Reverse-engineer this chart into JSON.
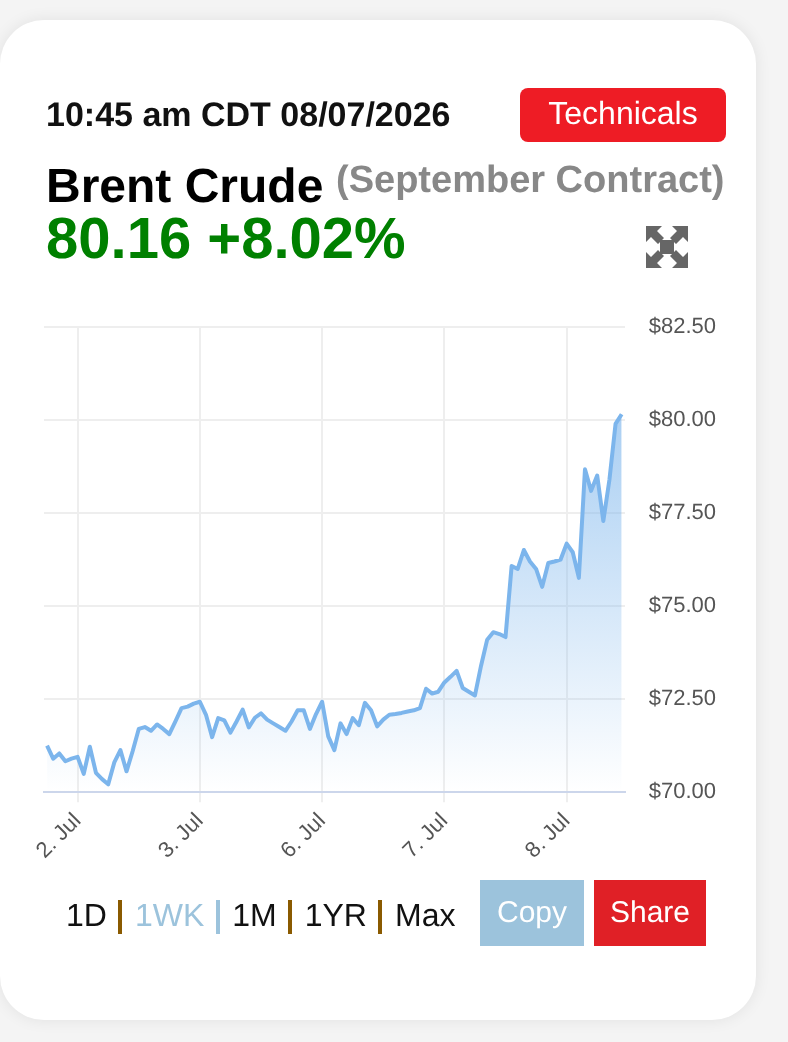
{
  "chart_data": {
    "type": "area",
    "title": "Brent Crude",
    "subtitle": "(September Contract)",
    "annotations": [
      "10:45 am CDT 08/07/2026",
      "80.16 +8.02%",
      "Technicals",
      "1D",
      "1WK",
      "1M",
      "1YR",
      "Max",
      "Copy",
      "Share"
    ],
    "categories": [
      null,
      null,
      null,
      null,
      null,
      "2. Jul",
      null,
      null,
      null,
      null,
      null,
      null,
      null,
      null,
      null,
      null,
      null,
      null,
      null,
      null,
      null,
      null,
      null,
      null,
      null,
      "3. Jul",
      null,
      null,
      null,
      null,
      null,
      null,
      null,
      null,
      null,
      null,
      null,
      null,
      null,
      null,
      null,
      null,
      null,
      null,
      null,
      "6. Jul",
      null,
      null,
      null,
      null,
      null,
      null,
      null,
      null,
      null,
      null,
      null,
      null,
      null,
      null,
      null,
      null,
      null,
      null,
      null,
      "7. Jul",
      null,
      null,
      null,
      null,
      null,
      null,
      null,
      null,
      null,
      null,
      null,
      null,
      null,
      null,
      null,
      null,
      null,
      null,
      null,
      "8. Jul",
      null,
      null,
      null,
      null,
      null,
      null,
      null,
      null,
      null
    ],
    "series": [
      {
        "color": "#7cb5ec",
        "values": [
          71.25,
          70.9,
          71.04,
          70.83,
          70.9,
          70.95,
          70.49,
          71.22,
          70.52,
          70.35,
          70.21,
          70.8,
          71.13,
          70.56,
          71.1,
          71.7,
          71.75,
          71.65,
          71.82,
          71.7,
          71.56,
          71.9,
          72.26,
          72.3,
          72.38,
          72.43,
          72.08,
          71.48,
          71.99,
          71.93,
          71.6,
          71.9,
          72.22,
          71.74,
          72.0,
          72.12,
          71.95,
          71.85,
          71.75,
          71.65,
          71.9,
          72.2,
          72.2,
          71.7,
          72.1,
          72.43,
          71.5,
          71.13,
          71.85,
          71.56,
          71.99,
          71.8,
          72.4,
          72.2,
          71.77,
          71.95,
          72.08,
          72.1,
          72.13,
          72.17,
          72.2,
          72.26,
          72.78,
          72.65,
          72.7,
          72.95,
          73.1,
          73.26,
          72.8,
          72.7,
          72.6,
          73.4,
          74.1,
          74.3,
          74.25,
          74.17,
          76.08,
          76.0,
          76.51,
          76.2,
          76.0,
          75.52,
          76.16,
          76.2,
          76.25,
          76.68,
          76.45,
          75.76,
          78.68,
          78.1,
          78.51,
          77.29,
          78.4,
          79.9,
          80.16
        ]
      }
    ],
    "ylim": [
      70,
      82.5
    ],
    "yticks": [
      {
        "value": 70,
        "label": "$70.00"
      },
      {
        "value": 72.5,
        "label": "$72.50"
      },
      {
        "value": 75,
        "label": "$75.00"
      },
      {
        "value": 77.5,
        "label": "$77.50"
      },
      {
        "value": 80,
        "label": "$80.00"
      },
      {
        "value": 82.5,
        "label": "$82.50"
      }
    ],
    "grid": true
  }
}
